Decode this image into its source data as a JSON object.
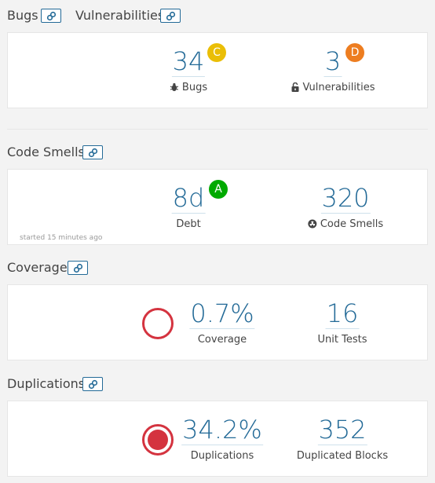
{
  "bugs_section": {
    "title": "Bugs",
    "title2": "Vulnerabilities",
    "bugs": {
      "value": "34",
      "label": "Bugs",
      "rating": "C",
      "rating_color": "#eabe06"
    },
    "vulnerabilities": {
      "value": "3",
      "label": "Vulnerabilities",
      "rating": "D",
      "rating_color": "#ed7d20"
    }
  },
  "code_smells_section": {
    "title": "Code Smells",
    "debt": {
      "value": "8d",
      "label": "Debt",
      "rating": "A",
      "rating_color": "#00aa00"
    },
    "smells": {
      "value": "320",
      "label": "Code Smells"
    },
    "started": "started 15 minutes ago"
  },
  "coverage_section": {
    "title": "Coverage",
    "coverage": {
      "value": "0.7%",
      "label": "Coverage"
    },
    "unit_tests": {
      "value": "16",
      "label": "Unit Tests"
    }
  },
  "duplications_section": {
    "title": "Duplications",
    "duplications": {
      "value": "34.2%",
      "label": "Duplications"
    },
    "blocks": {
      "value": "352",
      "label": "Duplicated Blocks"
    }
  },
  "colors": {
    "accent": "#236a97",
    "danger": "#d4333f"
  }
}
